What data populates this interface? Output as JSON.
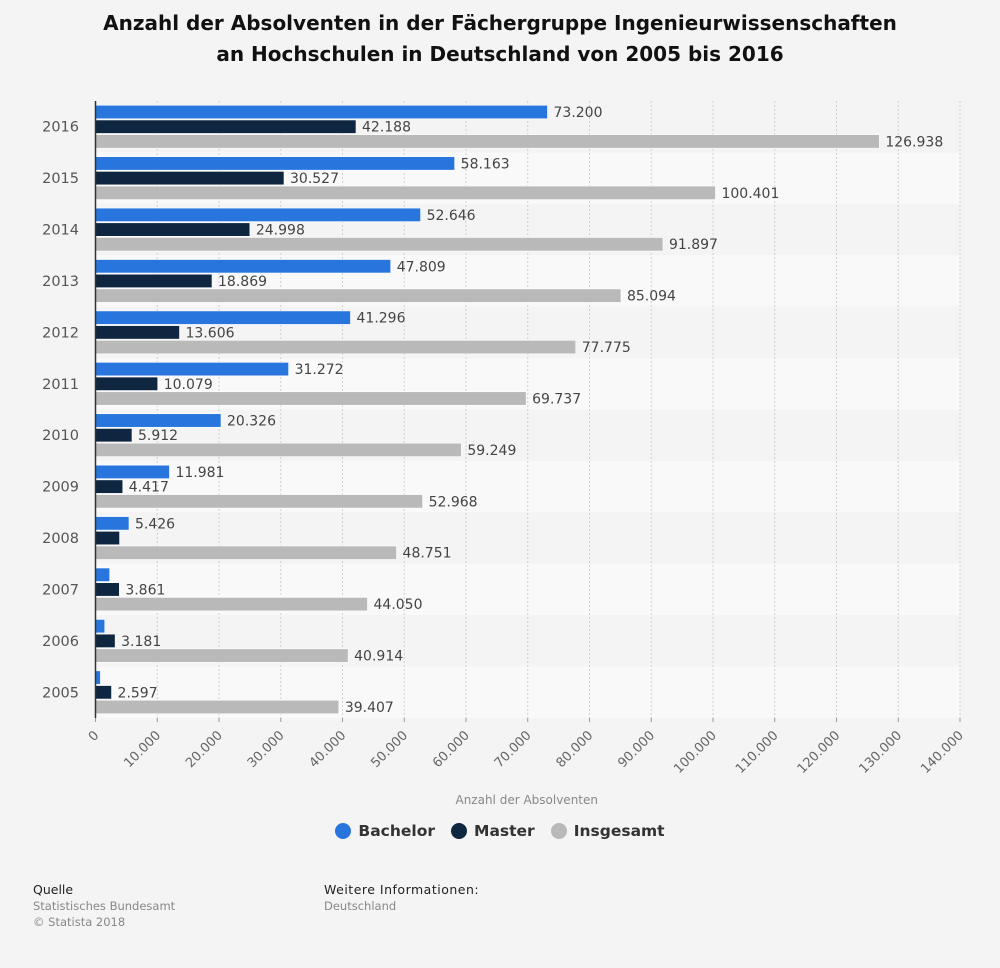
{
  "title_lines": [
    "Anzahl der Absolventen in der Fächergruppe Ingenieurwissenschaften",
    "an Hochschulen in Deutschland von 2005 bis 2016"
  ],
  "chart_data": {
    "type": "bar",
    "orientation": "horizontal",
    "title": "Anzahl der Absolventen in der Fächergruppe Ingenieurwissenschaften an Hochschulen in Deutschland von 2005 bis 2016",
    "xlabel": "Anzahl der Absolventen",
    "ylabel": "",
    "xlim": [
      0,
      140000
    ],
    "x_ticks": [
      0,
      10000,
      20000,
      30000,
      40000,
      50000,
      60000,
      70000,
      80000,
      90000,
      100000,
      110000,
      120000,
      130000,
      140000
    ],
    "x_tick_labels": [
      "0",
      "10.000",
      "20.000",
      "30.000",
      "40.000",
      "50.000",
      "60.000",
      "70.000",
      "80.000",
      "90.000",
      "100.000",
      "110.000",
      "120.000",
      "130.000",
      "140.000"
    ],
    "grid": true,
    "legend_position": "bottom-center",
    "categories": [
      "2016",
      "2015",
      "2014",
      "2013",
      "2012",
      "2011",
      "2010",
      "2009",
      "2008",
      "2007",
      "2006",
      "2005"
    ],
    "series": [
      {
        "name": "Bachelor",
        "color": "#2876dd",
        "values": [
          73200,
          58163,
          52646,
          47809,
          41296,
          31272,
          20326,
          11981,
          5426,
          2300,
          1500,
          800
        ],
        "labels": [
          "73.200",
          "58.163",
          "52.646",
          "47.809",
          "41.296",
          "31.272",
          "20.326",
          "11.981",
          "5.426",
          "",
          "",
          ""
        ]
      },
      {
        "name": "Master",
        "color": "#0f2640",
        "values": [
          42188,
          30527,
          24998,
          18869,
          13606,
          10079,
          5912,
          4417,
          3900,
          3861,
          3181,
          2597
        ],
        "labels": [
          "42.188",
          "30.527",
          "24.998",
          "18.869",
          "13.606",
          "10.079",
          "5.912",
          "4.417",
          "",
          "3.861",
          "3.181",
          "2.597"
        ]
      },
      {
        "name": "Insgesamt",
        "color": "#b9b9b9",
        "values": [
          126938,
          100401,
          91897,
          85094,
          77775,
          69737,
          59249,
          52968,
          48751,
          44050,
          40914,
          39407
        ],
        "labels": [
          "126.938",
          "100.401",
          "91.897",
          "85.094",
          "77.775",
          "69.737",
          "59.249",
          "52.968",
          "48.751",
          "44.050",
          "40.914",
          "39.407"
        ]
      }
    ]
  },
  "legend": [
    {
      "label": "Bachelor",
      "color": "#2876dd"
    },
    {
      "label": "Master",
      "color": "#0f2640"
    },
    {
      "label": "Insgesamt",
      "color": "#b9b9b9"
    }
  ],
  "footer": {
    "source_heading": "Quelle",
    "source_name": "Statistisches Bundesamt",
    "copyright": "© Statista 2018",
    "info_heading": "Weitere Informationen:",
    "info_value": "Deutschland"
  }
}
